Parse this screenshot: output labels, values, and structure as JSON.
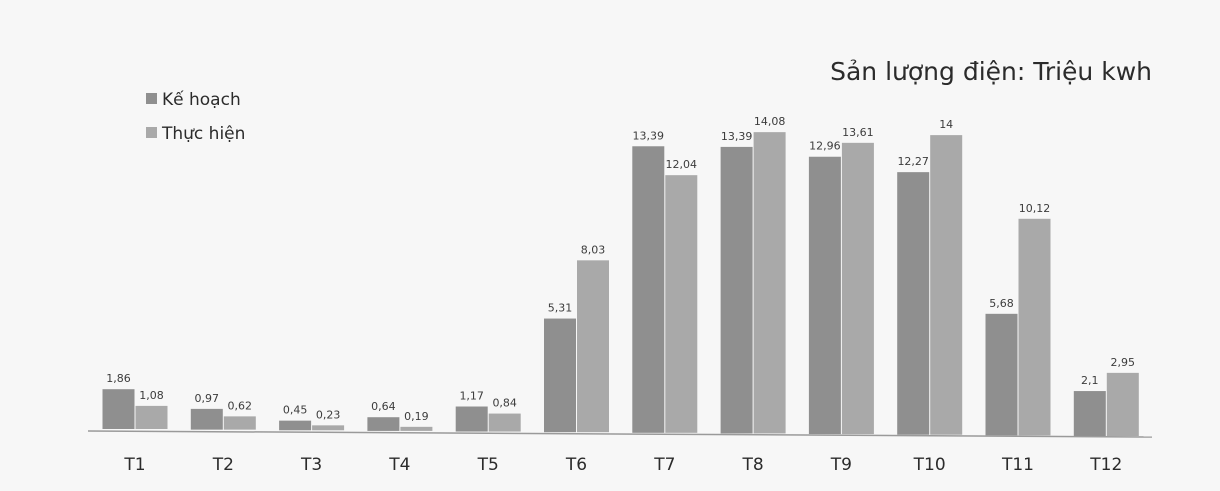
{
  "chart_data": {
    "type": "bar",
    "title": "Sản lượng điện: Triệu kwh",
    "categories": [
      "T1",
      "T2",
      "T3",
      "T4",
      "T5",
      "T6",
      "T7",
      "T8",
      "T9",
      "T10",
      "T11",
      "T12"
    ],
    "series": [
      {
        "name": "Kế hoạch",
        "values": [
          1.86,
          0.97,
          0.45,
          0.64,
          1.17,
          5.31,
          13.39,
          13.39,
          12.96,
          12.27,
          5.68,
          2.1
        ],
        "labels": [
          "1,86",
          "0,97",
          "0,45",
          "0,64",
          "1,17",
          "5,31",
          "13,39",
          "13,39",
          "12,96",
          "12,27",
          "5,68",
          "2,1"
        ]
      },
      {
        "name": "Thực hiện",
        "values": [
          1.08,
          0.62,
          0.23,
          0.19,
          0.84,
          8.03,
          12.04,
          14.08,
          13.61,
          14,
          10.12,
          2.95
        ],
        "labels": [
          "1,08",
          "0,62",
          "0,23",
          "0,19",
          "0,84",
          "8,03",
          "12,04",
          "14,08",
          "13,61",
          "14",
          "10,12",
          "2,95"
        ]
      }
    ],
    "ylim": [
      0,
      14.5
    ],
    "legend_position": "top-left",
    "grid": false,
    "colors": {
      "series": [
        "#8f8f8f",
        "#a9a9a9"
      ],
      "text": "#2b2b2b",
      "label": "#3c3c3c",
      "axis": "#9a9a9a",
      "background": "#f7f7f7"
    }
  }
}
